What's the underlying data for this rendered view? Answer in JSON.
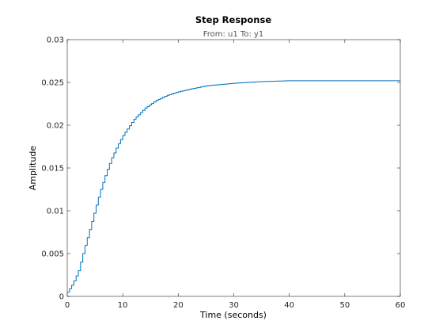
{
  "chart_data": {
    "type": "line",
    "title": "Step Response",
    "subtitle": "From: u1  To: y1",
    "xlabel": "Time (seconds)",
    "ylabel": "Amplitude",
    "xlim": [
      0,
      60
    ],
    "ylim": [
      0,
      0.03
    ],
    "x_ticks": [
      "0",
      "10",
      "20",
      "30",
      "40",
      "50",
      "60"
    ],
    "y_ticks": [
      "0",
      "0.005",
      "0.01",
      "0.015",
      "0.02",
      "0.025",
      "0.03"
    ],
    "grid": false,
    "step_style": true,
    "series": [
      {
        "color": "#0072BD",
        "x": [
          0,
          1,
          2,
          3,
          4,
          5,
          6,
          7,
          8,
          9,
          10,
          12,
          14,
          16,
          18,
          20,
          22,
          25,
          30,
          35,
          40,
          50,
          60
        ],
        "y": [
          0.0005,
          0.0015,
          0.003,
          0.0055,
          0.0078,
          0.0102,
          0.0125,
          0.0145,
          0.0162,
          0.0176,
          0.0188,
          0.0207,
          0.022,
          0.0229,
          0.0235,
          0.0239,
          0.0242,
          0.0246,
          0.0249,
          0.0251,
          0.0252,
          0.0252,
          0.0252
        ]
      }
    ]
  }
}
